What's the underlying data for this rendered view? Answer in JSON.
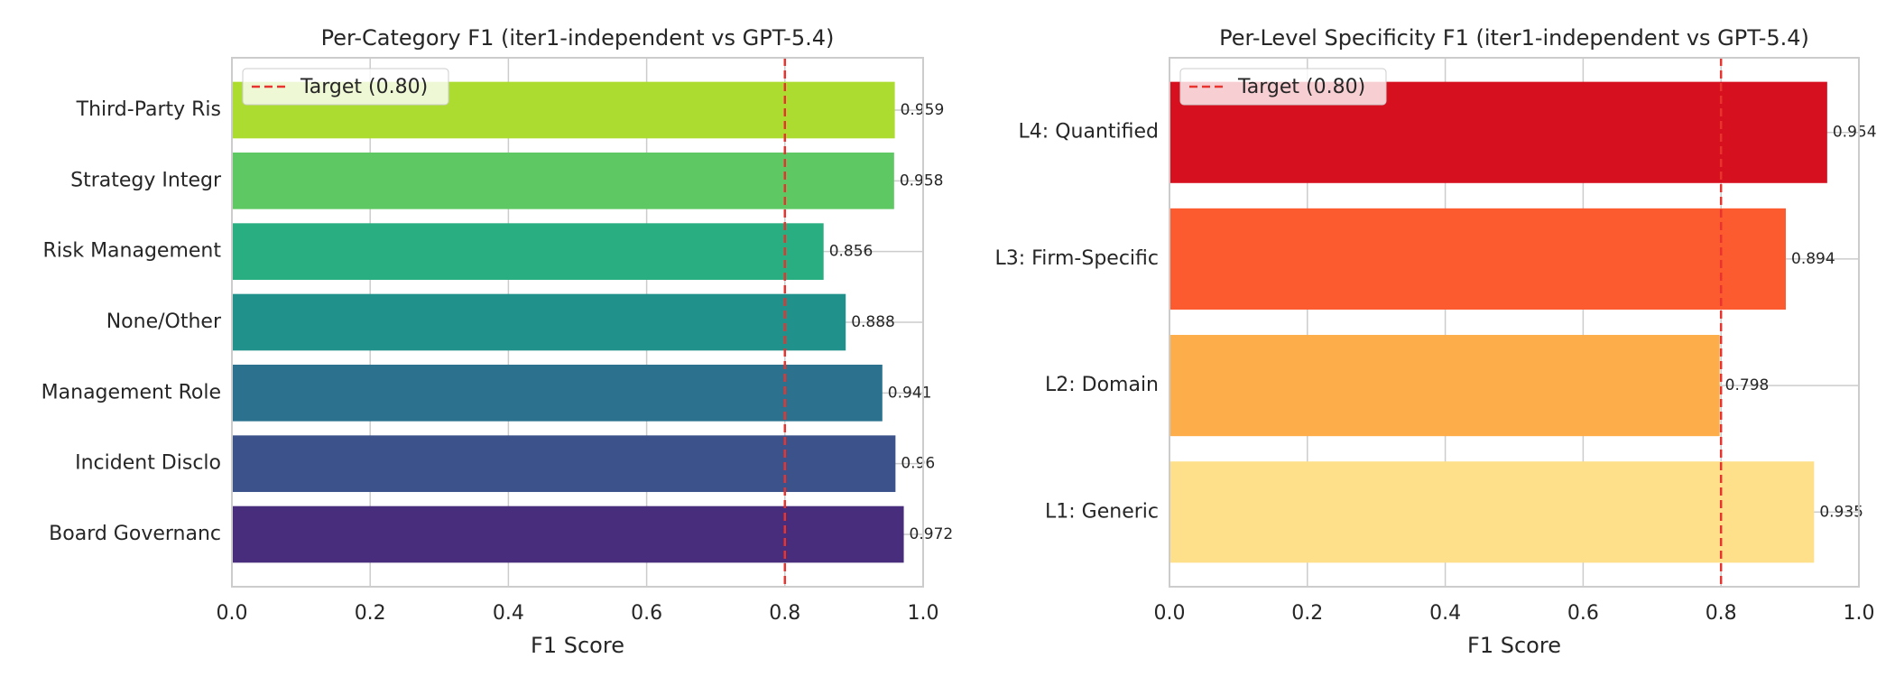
{
  "chart_data": [
    {
      "type": "barh",
      "title": "Per-Category F1 (iter1-independent vs GPT-5.4)",
      "categories": [
        "Board Governanc",
        "Incident Disclo",
        "Management Role",
        "None/Other",
        "Risk Management",
        "Strategy Integr",
        "Third-Party Ris"
      ],
      "values": [
        0.972,
        0.96,
        0.941,
        0.888,
        0.856,
        0.958,
        0.959
      ],
      "colors": [
        "#472d7b",
        "#3b528b",
        "#2c728e",
        "#21918c",
        "#28ae80",
        "#5ec962",
        "#addc30"
      ],
      "xlabel": "F1 Score",
      "xlim": [
        0,
        1
      ],
      "xticks": [
        {
          "value": 0,
          "label": "0.0"
        },
        0.2,
        0.4,
        0.6,
        0.8,
        {
          "value": 1,
          "label": "1.0"
        }
      ],
      "grid": true,
      "legend": "upper left",
      "reference_line": {
        "value": 0.8,
        "label": "Target (0.80)",
        "color": "#e8332f"
      }
    },
    {
      "type": "barh",
      "title": "Per-Level Specificity F1 (iter1-independent vs GPT-5.4)",
      "categories": [
        "L1: Generic",
        "L2: Domain",
        "L3: Firm-Specific",
        "L4: Quantified"
      ],
      "values": [
        0.935,
        0.798,
        0.894,
        0.954
      ],
      "colors": [
        "#fee08b",
        "#fdae4b",
        "#fc5a2f",
        "#d7101f"
      ],
      "xlabel": "F1 Score",
      "xlim": [
        0,
        1
      ],
      "xticks": [
        {
          "value": 0,
          "label": "0.0"
        },
        0.2,
        0.4,
        0.6,
        0.8,
        {
          "value": 1,
          "label": "1.0"
        }
      ],
      "grid": true,
      "legend": "upper left",
      "reference_line": {
        "value": 0.8,
        "label": "Target (0.80)",
        "color": "#e8332f"
      }
    }
  ]
}
